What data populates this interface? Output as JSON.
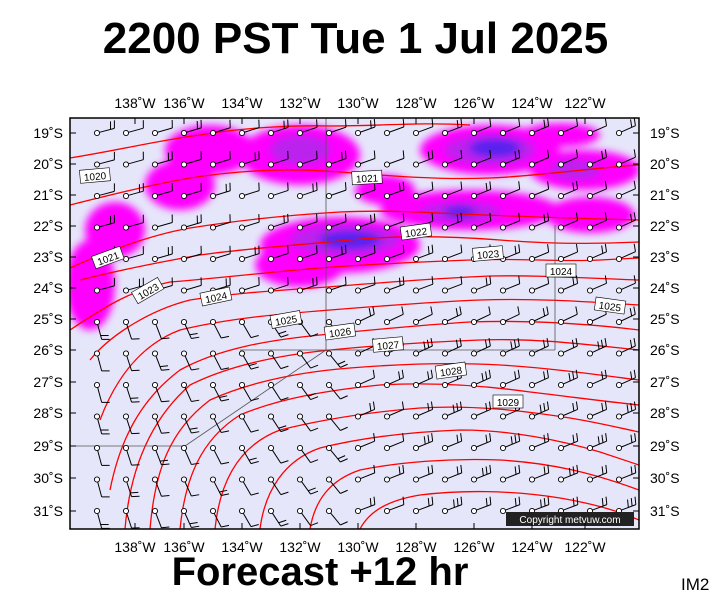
{
  "title": "2200 PST Tue 1 Jul 2025",
  "footer": "Forecast +12 hr",
  "corner_label": "IM2",
  "copyright": "Copyright metvuw.com",
  "colors": {
    "map_bg": "#e6e6fa",
    "isobar": "#ff0000",
    "rain_light": "#ff00ff",
    "rain_mid": "#bb22ee",
    "rain_heavy": "#5522ee",
    "rain_max": "#3311dd"
  },
  "axes": {
    "lon_labels": [
      "138˚W",
      "136˚W",
      "134˚W",
      "132˚W",
      "130˚W",
      "128˚W",
      "126˚W",
      "124˚W",
      "122˚W"
    ],
    "lat_labels": [
      "19˚S",
      "20˚S",
      "21˚S",
      "22˚S",
      "23˚S",
      "24˚S",
      "25˚S",
      "26˚S",
      "27˚S",
      "28˚S",
      "29˚S",
      "30˚S",
      "31˚S"
    ]
  },
  "isobar_labels": [
    "1020",
    "1021",
    "1021",
    "1022",
    "1023",
    "1023",
    "1024",
    "1024",
    "1025",
    "1025",
    "1026",
    "1027",
    "1028",
    "1029"
  ]
}
